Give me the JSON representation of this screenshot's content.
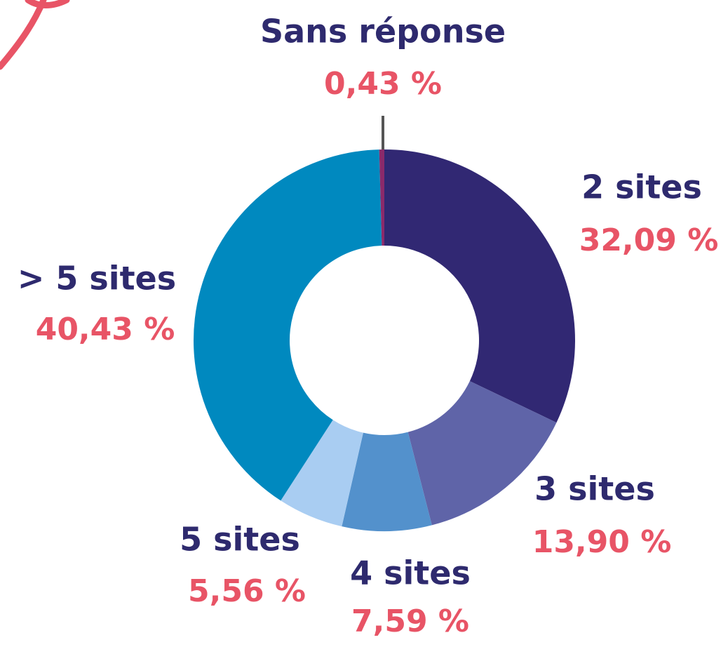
{
  "chart_data": {
    "type": "donut",
    "categories": [
      "2 sites",
      "3 sites",
      "4 sites",
      "5 sites",
      "> 5 sites",
      "Sans réponse"
    ],
    "values": [
      32.09,
      13.9,
      7.59,
      5.56,
      40.43,
      0.43
    ],
    "value_labels": [
      "32,09 %",
      "13,90 %",
      "7,59 %",
      "5,56 %",
      "40,43 %",
      "0,43 %"
    ],
    "colors": [
      "#312873",
      "#5f64a8",
      "#5391cc",
      "#a9cdf2",
      "#0089bf",
      "#8a2a6b"
    ]
  }
}
